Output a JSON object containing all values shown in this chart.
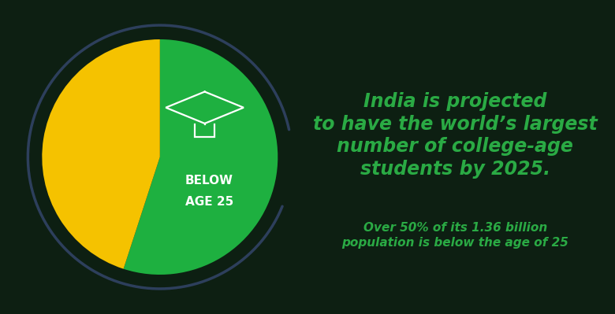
{
  "background_color": "#0d1f12",
  "pie_green_pct": 55,
  "pie_yellow_pct": 45,
  "green_color": "#1eb040",
  "yellow_color": "#f5c200",
  "arc_color": "#2d3f5c",
  "label_line1": "BELOW",
  "label_line2": "AGE 25",
  "label_color": "#ffffff",
  "label_fontsize": 11,
  "title_lines": [
    "India is projected",
    "to have the world’s largest",
    "number of college-age",
    "students by 2025."
  ],
  "title_color": "#2aaa44",
  "title_fontsize": 17,
  "subtitle_lines": [
    "Over 50% of its 1.36 billion",
    "population is below the age of 25"
  ],
  "subtitle_color": "#2aaa44",
  "subtitle_fontsize": 11,
  "cap_color": "#ffffff",
  "cap_linewidth": 1.6
}
